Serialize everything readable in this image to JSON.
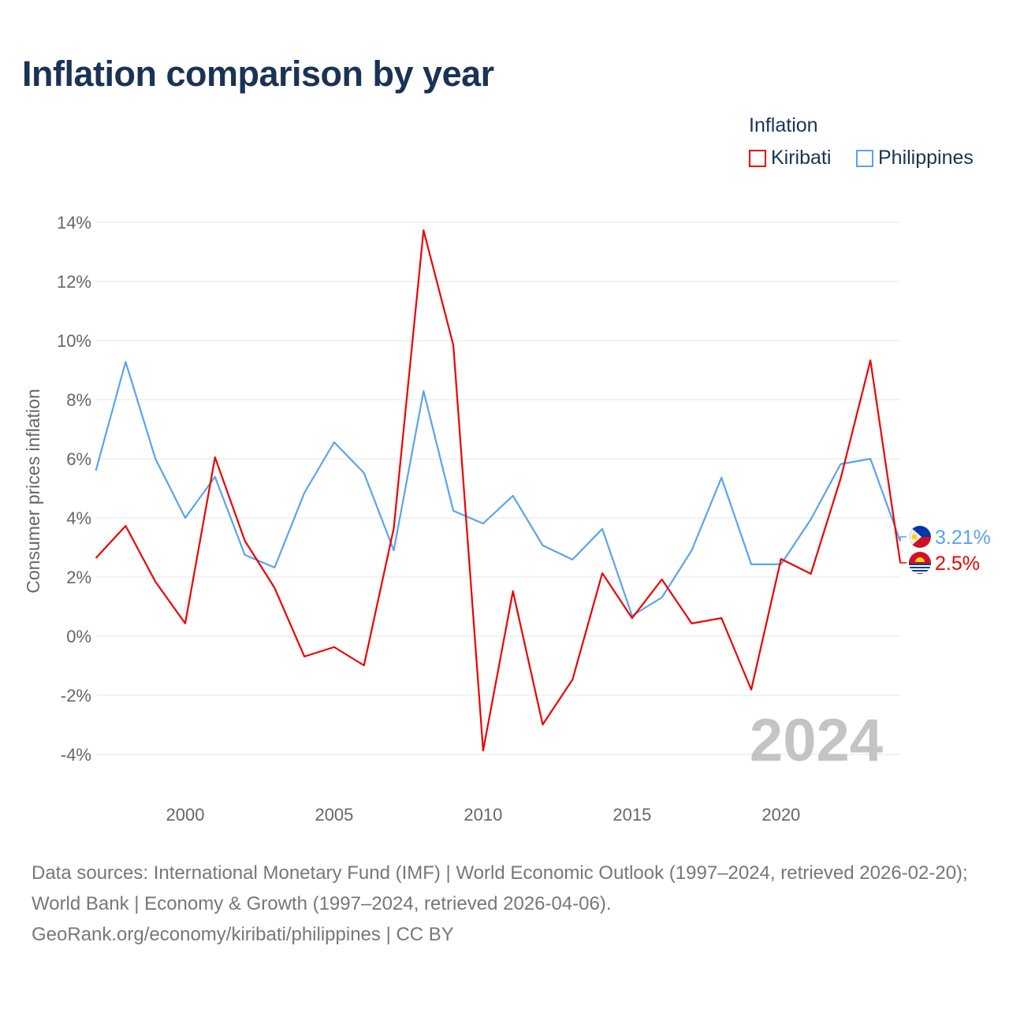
{
  "chart_data": {
    "type": "line",
    "title": "Inflation comparison by year",
    "xlabel": "",
    "ylabel": "Consumer prices inflation",
    "legend_title": "Inflation",
    "legend_placement": "top-right",
    "x": [
      1997,
      1998,
      1999,
      2000,
      2001,
      2002,
      2003,
      2004,
      2005,
      2006,
      2007,
      2008,
      2009,
      2010,
      2011,
      2012,
      2013,
      2014,
      2015,
      2016,
      2017,
      2018,
      2019,
      2020,
      2021,
      2022,
      2023,
      2024
    ],
    "xlim": [
      1997,
      2024
    ],
    "ylim": [
      -4,
      14
    ],
    "x_ticks": [
      "2000",
      "2005",
      "2010",
      "2015",
      "2020"
    ],
    "x_tick_values": [
      2000,
      2005,
      2010,
      2015,
      2020
    ],
    "y_ticks": [
      "-4%",
      "-2%",
      "0%",
      "2%",
      "4%",
      "6%",
      "8%",
      "10%",
      "12%",
      "14%"
    ],
    "y_tick_values": [
      -4,
      -2,
      0,
      2,
      4,
      6,
      8,
      10,
      12,
      14
    ],
    "grid": true,
    "year_watermark": "2024",
    "series": [
      {
        "name": "Kiribati",
        "color": "#ee0000",
        "end_label": "2.5%",
        "values": [
          2.64,
          3.73,
          1.84,
          0.43,
          6.05,
          3.23,
          1.63,
          -0.69,
          -0.37,
          -0.99,
          3.65,
          13.73,
          9.84,
          -3.87,
          1.52,
          -2.99,
          -1.47,
          2.13,
          0.61,
          1.92,
          0.43,
          0.61,
          -1.81,
          2.61,
          2.11,
          5.33,
          9.33,
          2.5
        ]
      },
      {
        "name": "Philippines",
        "color": "#5aa4ec",
        "end_label": "3.21%",
        "values": [
          5.6,
          9.28,
          6.0,
          4.0,
          5.39,
          2.75,
          2.32,
          4.85,
          6.56,
          5.52,
          2.9,
          8.29,
          4.24,
          3.81,
          4.75,
          3.07,
          2.59,
          3.63,
          0.69,
          1.31,
          2.9,
          5.36,
          2.43,
          2.43,
          3.95,
          5.82,
          6.0,
          3.21
        ]
      }
    ]
  },
  "footer": {
    "sources": "Data sources: International Monetary Fund (IMF) | World Economic Outlook (1997–2024, retrieved 2026-02-20); World Bank | Economy & Growth (1997–2024, retrieved 2026-04-06).",
    "credit": "GeoRank.org/economy/kiribati/philippines | CC BY"
  }
}
